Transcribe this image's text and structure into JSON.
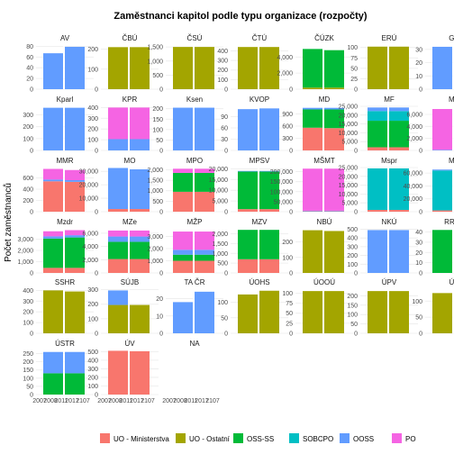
{
  "chart_data": {
    "type": "bar",
    "layout": "faceted-stacked-bar",
    "title": "Zaměstnanci kapitol podle typu organizace (rozpočty)",
    "xlabel": "",
    "ylabel": "Počet zaměstnanců",
    "legend_position": "bottom",
    "categories": [
      "UO - Ministerstva",
      "UO - Ostatní",
      "OSS-SS",
      "SOBCPO",
      "OOSS",
      "PO"
    ],
    "colors": {
      "UO - Ministerstva": "#F8766D",
      "UO - Ostatní": "#A3A500",
      "OSS-SS": "#00BA38",
      "SOBCPO": "#00BFC4",
      "OOSS": "#619CFF",
      "PO": "#F564E3"
    },
    "x_tick_labels": [
      "2007",
      "2008",
      "2011",
      "2017",
      "2107"
    ],
    "grid": true,
    "facets": [
      {
        "name": "AV",
        "ticks": [
          0,
          20,
          40,
          60,
          80
        ],
        "ylim": [
          0,
          84
        ],
        "bars": [
          {
            "OOSS": 67
          },
          {
            "OOSS": 79
          }
        ]
      },
      {
        "name": "ČBÚ",
        "ticks": [
          0,
          100,
          200
        ],
        "ylim": [
          0,
          225
        ],
        "bars": [
          {
            "UO - Ostatní": 210
          },
          {
            "UO - Ostatní": 210
          }
        ]
      },
      {
        "name": "ČSÚ",
        "ticks": [
          0,
          500,
          1000,
          1500
        ],
        "ylim": [
          0,
          1600
        ],
        "bars": [
          {
            "UO - Ostatní": 1500
          },
          {
            "UO - Ostatní": 1500
          }
        ]
      },
      {
        "name": "ČTÚ",
        "ticks": [
          0,
          100,
          200,
          300,
          400
        ],
        "ylim": [
          0,
          470
        ],
        "bars": [
          {
            "UO - Ostatní": 440
          },
          {
            "UO - Ostatní": 440
          }
        ]
      },
      {
        "name": "ČÚZK",
        "ticks": [
          0,
          2000,
          4000
        ],
        "ylim": [
          0,
          5600
        ],
        "bars": [
          {
            "UO - Ostatní": 200,
            "OSS-SS": 4800
          },
          {
            "UO - Ostatní": 200,
            "OSS-SS": 4650
          }
        ]
      },
      {
        "name": "ERÚ",
        "ticks": [
          0,
          25,
          50,
          75,
          100
        ],
        "ylim": [
          0,
          108
        ],
        "bars": [
          {
            "UO - Ostatní": 102
          },
          {
            "UO - Ostatní": 102
          }
        ]
      },
      {
        "name": "GA",
        "ticks": [
          0,
          10,
          20,
          30
        ],
        "ylim": [
          0,
          34
        ],
        "bars": [
          {
            "OOSS": 32
          },
          {
            "OOSS": 30
          }
        ]
      },
      {
        "name": "Kparl",
        "ticks": [
          0,
          100,
          200,
          300
        ],
        "ylim": [
          0,
          380
        ],
        "bars": [
          {
            "OOSS": 360
          },
          {
            "OOSS": 360
          }
        ]
      },
      {
        "name": "KPR",
        "ticks": [
          0,
          100,
          200,
          300,
          400
        ],
        "ylim": [
          0,
          420
        ],
        "bars": [
          {
            "OOSS": 105,
            "PO": 295
          },
          {
            "OOSS": 105,
            "PO": 295
          }
        ]
      },
      {
        "name": "Ksen",
        "ticks": [
          0,
          50,
          100,
          150,
          200
        ],
        "ylim": [
          0,
          216
        ],
        "bars": [
          {
            "OOSS": 205
          },
          {
            "OOSS": 205
          }
        ]
      },
      {
        "name": "KVOP",
        "ticks": [
          0,
          30,
          60,
          90
        ],
        "ylim": [
          0,
          120
        ],
        "bars": [
          {
            "OOSS": 110
          },
          {
            "OOSS": 112
          }
        ]
      },
      {
        "name": "MD",
        "ticks": [
          0,
          300,
          600,
          900
        ],
        "ylim": [
          0,
          1110
        ],
        "bars": [
          {
            "OSS-SS": 450,
            "OOSS": 40,
            "UO - Ministerstva": 560
          },
          {
            "OSS-SS": 460,
            "OOSS": 40,
            "UO - Ministerstva": 550
          }
        ]
      },
      {
        "name": "MF",
        "ticks": [
          0,
          5000,
          10000,
          15000,
          20000,
          25000
        ],
        "ylim": [
          0,
          25500
        ],
        "bars": [
          {
            "OOSS": 2000,
            "OSS-SS": 15000,
            "SOBCPO": 5500,
            "UO - Ministerstva": 1800
          },
          {
            "OOSS": 2000,
            "OSS-SS": 15000,
            "SOBCPO": 5500,
            "UO - Ministerstva": 1800
          }
        ]
      },
      {
        "name": "MK",
        "ticks": [
          0,
          2000,
          4000,
          6000
        ],
        "ylim": [
          0,
          7500
        ],
        "bars": [
          {
            "OOSS": 100,
            "PO": 6800
          },
          {
            "OOSS": 100,
            "PO": 6800
          }
        ]
      },
      {
        "name": "MMR",
        "ticks": [
          0,
          200,
          400,
          600
        ],
        "ylim": [
          0,
          800
        ],
        "bars": [
          {
            "OOSS": 30,
            "PO": 190,
            "UO - Ministerstva": 540
          },
          {
            "OOSS": 30,
            "PO": 180,
            "UO - Ministerstva": 530
          }
        ]
      },
      {
        "name": "MO",
        "ticks": [
          0,
          10000,
          20000,
          30000
        ],
        "ylim": [
          0,
          33500
        ],
        "bars": [
          {
            "OOSS": 30500,
            "UO - Ministerstva": 2000
          },
          {
            "OOSS": 29500,
            "UO - Ministerstva": 2000
          }
        ]
      },
      {
        "name": "MPO",
        "ticks": [
          0,
          500,
          1000,
          1500,
          2000
        ],
        "ylim": [
          0,
          2150
        ],
        "bars": [
          {
            "OSS-SS": 900,
            "PO": 200,
            "UO - Ministerstva": 950
          },
          {
            "OSS-SS": 900,
            "PO": 200,
            "UO - Ministerstva": 950
          }
        ]
      },
      {
        "name": "MPSV",
        "ticks": [
          0,
          5000,
          10000,
          15000,
          20000
        ],
        "ylim": [
          0,
          21000
        ],
        "bars": [
          {
            "OOSS": 300,
            "OSS-SS": 17500,
            "UO - Ministerstva": 1200
          },
          {
            "OOSS": 300,
            "OSS-SS": 17500,
            "UO - Ministerstva": 1200
          }
        ]
      },
      {
        "name": "MŠMT",
        "ticks": [
          0,
          50000,
          100000,
          150000,
          200000
        ],
        "ylim": [
          0,
          225000
        ],
        "bars": [
          {
            "OOSS": 3000,
            "PO": 210000,
            "UO - Ministerstva": 2000
          },
          {
            "OOSS": 3000,
            "PO": 210000,
            "UO - Ministerstva": 2000
          }
        ]
      },
      {
        "name": "Mspr",
        "ticks": [
          0,
          5000,
          10000,
          15000,
          20000,
          25000
        ],
        "ylim": [
          0,
          25500
        ],
        "bars": [
          {
            "SOBCPO": 23500,
            "UO - Ministerstva": 1000
          },
          {
            "SOBCPO": 23500,
            "UO - Ministerstva": 1000
          }
        ]
      },
      {
        "name": "MV",
        "ticks": [
          0,
          20000,
          40000,
          60000
        ],
        "ylim": [
          0,
          70000
        ],
        "bars": [
          {
            "OOSS": 1500,
            "SOBCPO": 62000,
            "UO - Ministerstva": 2000
          },
          {
            "OOSS": 1500,
            "SOBCPO": 62000,
            "UO - Ministerstva": 2000
          }
        ]
      },
      {
        "name": "Mzdr",
        "ticks": [
          0,
          1000,
          2000,
          3000
        ],
        "ylim": [
          0,
          4000
        ],
        "bars": [
          {
            "OOSS": 200,
            "OSS-SS": 2600,
            "PO": 450,
            "UO - Ministerstva": 450
          },
          {
            "OOSS": 200,
            "OSS-SS": 2700,
            "PO": 450,
            "UO - Ministerstva": 450
          }
        ]
      },
      {
        "name": "MZe",
        "ticks": [
          0,
          2000,
          4000,
          6000
        ],
        "ylim": [
          0,
          6800
        ],
        "bars": [
          {
            "OOSS": 800,
            "OSS-SS": 2600,
            "PO": 900,
            "UO - Ministerstva": 2100
          },
          {
            "OOSS": 800,
            "OSS-SS": 2600,
            "PO": 900,
            "UO - Ministerstva": 2100
          }
        ]
      },
      {
        "name": "MŽP",
        "ticks": [
          0,
          1000,
          2000,
          3000
        ],
        "ylim": [
          0,
          3700
        ],
        "bars": [
          {
            "OOSS": 400,
            "OSS-SS": 500,
            "PO": 1500,
            "UO - Ministerstva": 1000
          },
          {
            "OOSS": 400,
            "OSS-SS": 500,
            "PO": 1500,
            "UO - Ministerstva": 1000
          }
        ]
      },
      {
        "name": "MZV",
        "ticks": [
          0,
          500,
          1000,
          1500,
          2000
        ],
        "ylim": [
          0,
          2300
        ],
        "bars": [
          {
            "OSS-SS": 1500,
            "UO - Ministerstva": 700
          },
          {
            "OSS-SS": 1500,
            "UO - Ministerstva": 700
          }
        ]
      },
      {
        "name": "NBÚ",
        "ticks": [
          0,
          100,
          200
        ],
        "ylim": [
          0,
          290
        ],
        "bars": [
          {
            "UO - Ostatní": 275
          },
          {
            "UO - Ostatní": 270
          }
        ]
      },
      {
        "name": "NKÚ",
        "ticks": [
          0,
          100,
          200,
          300,
          400,
          500
        ],
        "ylim": [
          0,
          515
        ],
        "bars": [
          {
            "OOSS": 490
          },
          {
            "OOSS": 490
          }
        ]
      },
      {
        "name": "RRTV",
        "ticks": [
          0,
          10,
          20,
          30,
          40
        ],
        "ylim": [
          0,
          44
        ],
        "bars": [
          {
            "OSS-SS": 42
          },
          {
            "OSS-SS": 42
          }
        ]
      },
      {
        "name": "SSHR",
        "ticks": [
          0,
          100,
          200,
          300,
          400
        ],
        "ylim": [
          0,
          420
        ],
        "bars": [
          {
            "UO - Ostatní": 400
          },
          {
            "UO - Ostatní": 390
          }
        ]
      },
      {
        "name": "SÚJB",
        "ticks": [
          0,
          100,
          200,
          300
        ],
        "ylim": [
          0,
          310
        ],
        "bars": [
          {
            "OOSS": 100,
            "UO - Ostatní": 195
          },
          {
            "UO - Ostatní": 195
          }
        ]
      },
      {
        "name": "TA ČR",
        "ticks": [
          0,
          10,
          20
        ],
        "ylim": [
          0,
          26
        ],
        "bars": [
          {
            "OOSS": 18
          },
          {
            "OOSS": 24
          }
        ]
      },
      {
        "name": "ÚOHS",
        "ticks": [
          0,
          50,
          100
        ],
        "ylim": [
          0,
          145
        ],
        "bars": [
          {
            "UO - Ostatní": 125
          },
          {
            "UO - Ostatní": 137
          }
        ]
      },
      {
        "name": "ÚOOÚ",
        "ticks": [
          0,
          25,
          50,
          75,
          100
        ],
        "ylim": [
          0,
          112
        ],
        "bars": [
          {
            "UO - Ostatní": 105
          },
          {
            "UO - Ostatní": 105
          }
        ]
      },
      {
        "name": "ÚPV",
        "ticks": [
          0,
          50,
          100,
          150,
          200
        ],
        "ylim": [
          0,
          240
        ],
        "bars": [
          {
            "UO - Ostatní": 225
          },
          {
            "UO - Ostatní": 225
          }
        ]
      },
      {
        "name": "ÚS",
        "ticks": [
          0,
          50,
          100
        ],
        "ylim": [
          0,
          140
        ],
        "bars": [
          {
            "UO - Ostatní": 125
          },
          {
            "UO - Ostatní": 125
          }
        ]
      },
      {
        "name": "ÚSTR",
        "ticks": [
          0,
          50,
          100,
          150,
          200,
          250
        ],
        "ylim": [
          0,
          275
        ],
        "bars": [
          {
            "OOSS": 130,
            "OSS-SS": 130
          },
          {
            "OOSS": 130,
            "OSS-SS": 130
          }
        ]
      },
      {
        "name": "ÚV",
        "ticks": [
          0,
          100,
          200,
          300,
          400,
          500
        ],
        "ylim": [
          0,
          525
        ],
        "bars": [
          {
            "UO - Ministerstva": 510
          },
          {
            "UO - Ministerstva": 505
          }
        ]
      },
      {
        "name": "NA",
        "ticks": [],
        "ylim": [
          0,
          1
        ],
        "bars": []
      }
    ]
  }
}
